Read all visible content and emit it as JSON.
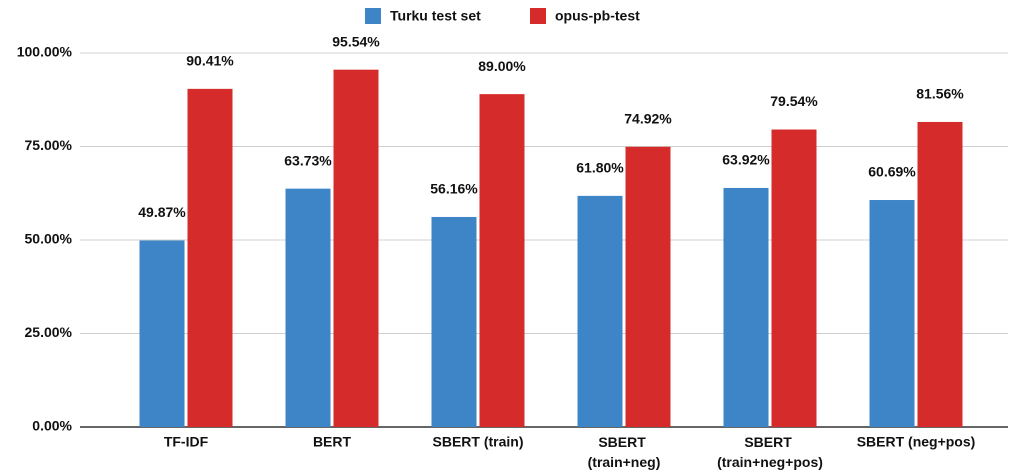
{
  "chart_data": {
    "type": "bar",
    "categories": [
      "TF-IDF",
      "BERT",
      "SBERT (train)",
      "SBERT (train+neg)",
      "SBERT (train+neg+pos)",
      "SBERT (neg+pos)"
    ],
    "series": [
      {
        "name": "Turku test set",
        "color": "#3d85c6",
        "values": [
          49.87,
          63.73,
          56.16,
          61.8,
          63.92,
          60.69
        ],
        "value_labels": [
          "49.87%",
          "63.73%",
          "56.16%",
          "61.80%",
          "63.92%",
          "60.69%"
        ]
      },
      {
        "name": "opus-pb-test",
        "color": "#d52b2b",
        "values": [
          90.41,
          95.54,
          89.0,
          74.92,
          79.54,
          81.56
        ],
        "value_labels": [
          "90.41%",
          "95.54%",
          "89.00%",
          "74.92%",
          "79.54%",
          "81.56%"
        ]
      }
    ],
    "ylim": [
      0,
      100
    ],
    "yticks": [
      {
        "value": 0,
        "label": "0.00%"
      },
      {
        "value": 25,
        "label": "25.00%"
      },
      {
        "value": 50,
        "label": "50.00%"
      },
      {
        "value": 75,
        "label": "75.00%"
      },
      {
        "value": 100,
        "label": "100.00%"
      }
    ],
    "grid": true,
    "legend": "top"
  }
}
